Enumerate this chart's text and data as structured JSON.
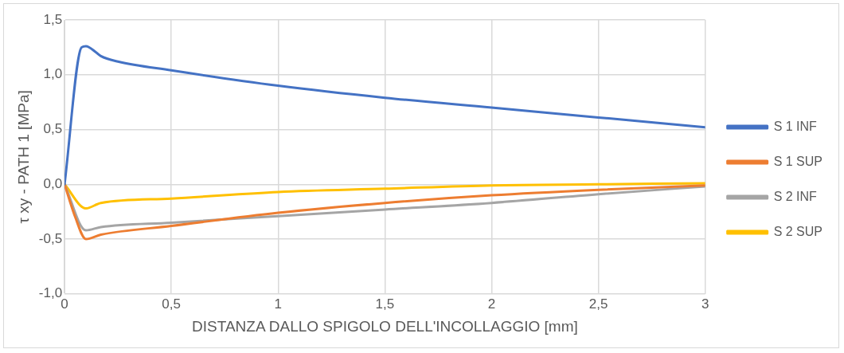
{
  "chart_data": {
    "type": "line",
    "xlabel": "DISTANZA DALLO SPIGOLO DELL'INCOLLAGGIO [mm]",
    "ylabel": "τ xy - PATH 1 [MPa]",
    "xlim": [
      0,
      3
    ],
    "xticks": [
      0,
      {
        "value": 0.5,
        "label": "0,5"
      },
      1,
      {
        "value": 1.5,
        "label": "1,5"
      },
      2,
      {
        "value": 2.5,
        "label": "2,5"
      },
      3
    ],
    "ylim": [
      -1,
      1.5
    ],
    "yticks": [
      {
        "value": -1,
        "label": "-1,0"
      },
      {
        "value": -0.5,
        "label": "-0,5"
      },
      {
        "value": 0,
        "label": "0,0"
      },
      {
        "value": 0.5,
        "label": "0,5"
      },
      {
        "value": 1,
        "label": "1,0"
      },
      {
        "value": 1.5,
        "label": "1,5"
      }
    ],
    "grid": true,
    "legend": "right",
    "marker": "none",
    "line_style": "solid",
    "series": [
      {
        "name": "S 1 INF",
        "color": "#4472c4",
        "x": [
          0,
          0.08,
          0.1,
          0.15,
          0.17,
          0.25,
          0.5,
          1,
          1.5,
          2,
          2.5,
          3
        ],
        "values": [
          0,
          1.25,
          1.26,
          1.2,
          1.17,
          1.12,
          1.04,
          0.9,
          0.79,
          0.7,
          0.61,
          0.52
        ]
      },
      {
        "name": "S 1 SUP",
        "color": "#ed7d31",
        "x": [
          0,
          0.05,
          0.1,
          0.17,
          0.5,
          1,
          1.5,
          2,
          2.5,
          3
        ],
        "values": [
          0,
          -0.3,
          -0.5,
          -0.46,
          -0.38,
          -0.26,
          -0.17,
          -0.1,
          -0.05,
          -0.01
        ]
      },
      {
        "name": "S 2 INF",
        "color": "#a5a5a5",
        "x": [
          0,
          0.1,
          0.17,
          0.5,
          1,
          1.5,
          2,
          2.5,
          3
        ],
        "values": [
          0,
          -0.42,
          -0.39,
          -0.35,
          -0.29,
          -0.23,
          -0.17,
          -0.09,
          -0.02
        ]
      },
      {
        "name": "S 2 SUP",
        "color": "#ffc000",
        "x": [
          0,
          0.1,
          0.17,
          0.5,
          1,
          1.5,
          2,
          2.5,
          3
        ],
        "values": [
          0,
          -0.22,
          -0.17,
          -0.13,
          -0.07,
          -0.04,
          -0.01,
          0,
          0.01
        ]
      }
    ]
  }
}
